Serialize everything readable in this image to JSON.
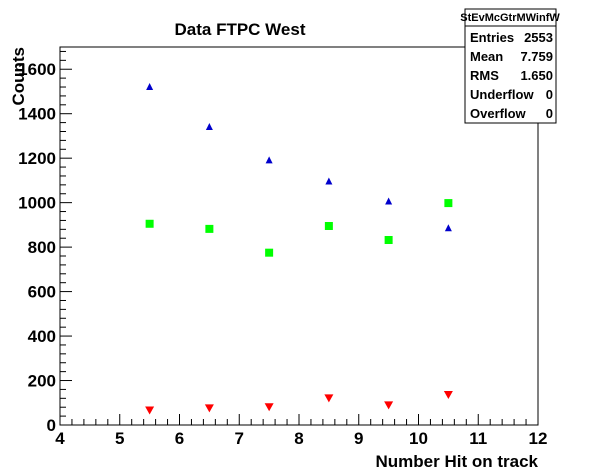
{
  "chart_data": {
    "type": "scatter",
    "title": "Data FTPC West",
    "xlabel": "Number Hit on track",
    "ylabel": "Counts",
    "xlim": [
      4,
      12
    ],
    "ylim": [
      0,
      1700
    ],
    "x_ticks": [
      "4",
      "5",
      "6",
      "7",
      "8",
      "9",
      "10",
      "11",
      "12"
    ],
    "y_ticks": [
      "0",
      "200",
      "400",
      "600",
      "800",
      "1000",
      "1200",
      "1400",
      "1600"
    ],
    "grid": false,
    "series": [
      {
        "color": "#0000cc",
        "marker": "triangle-up",
        "x": [
          5.5,
          6.5,
          7.5,
          8.5,
          9.5,
          10.5
        ],
        "y": [
          1520,
          1340,
          1190,
          1095,
          1005,
          885
        ]
      },
      {
        "color": "#00ff00",
        "marker": "square",
        "x": [
          5.5,
          6.5,
          7.5,
          8.5,
          9.5,
          10.5
        ],
        "y": [
          905,
          882,
          775,
          895,
          832,
          998
        ]
      },
      {
        "color": "#ff0000",
        "marker": "triangle-down",
        "x": [
          5.5,
          6.5,
          7.5,
          8.5,
          9.5,
          10.5
        ],
        "y": [
          65,
          75,
          80,
          120,
          88,
          135
        ]
      }
    ],
    "stats_box": {
      "name": "StEvMcGtrMWinfW",
      "rows": [
        {
          "label": "Entries",
          "value": "2553"
        },
        {
          "label": "Mean",
          "value": "7.759"
        },
        {
          "label": "RMS",
          "value": "1.650"
        },
        {
          "label": "Underflow",
          "value": "0"
        },
        {
          "label": "Overflow",
          "value": "0"
        }
      ]
    }
  }
}
